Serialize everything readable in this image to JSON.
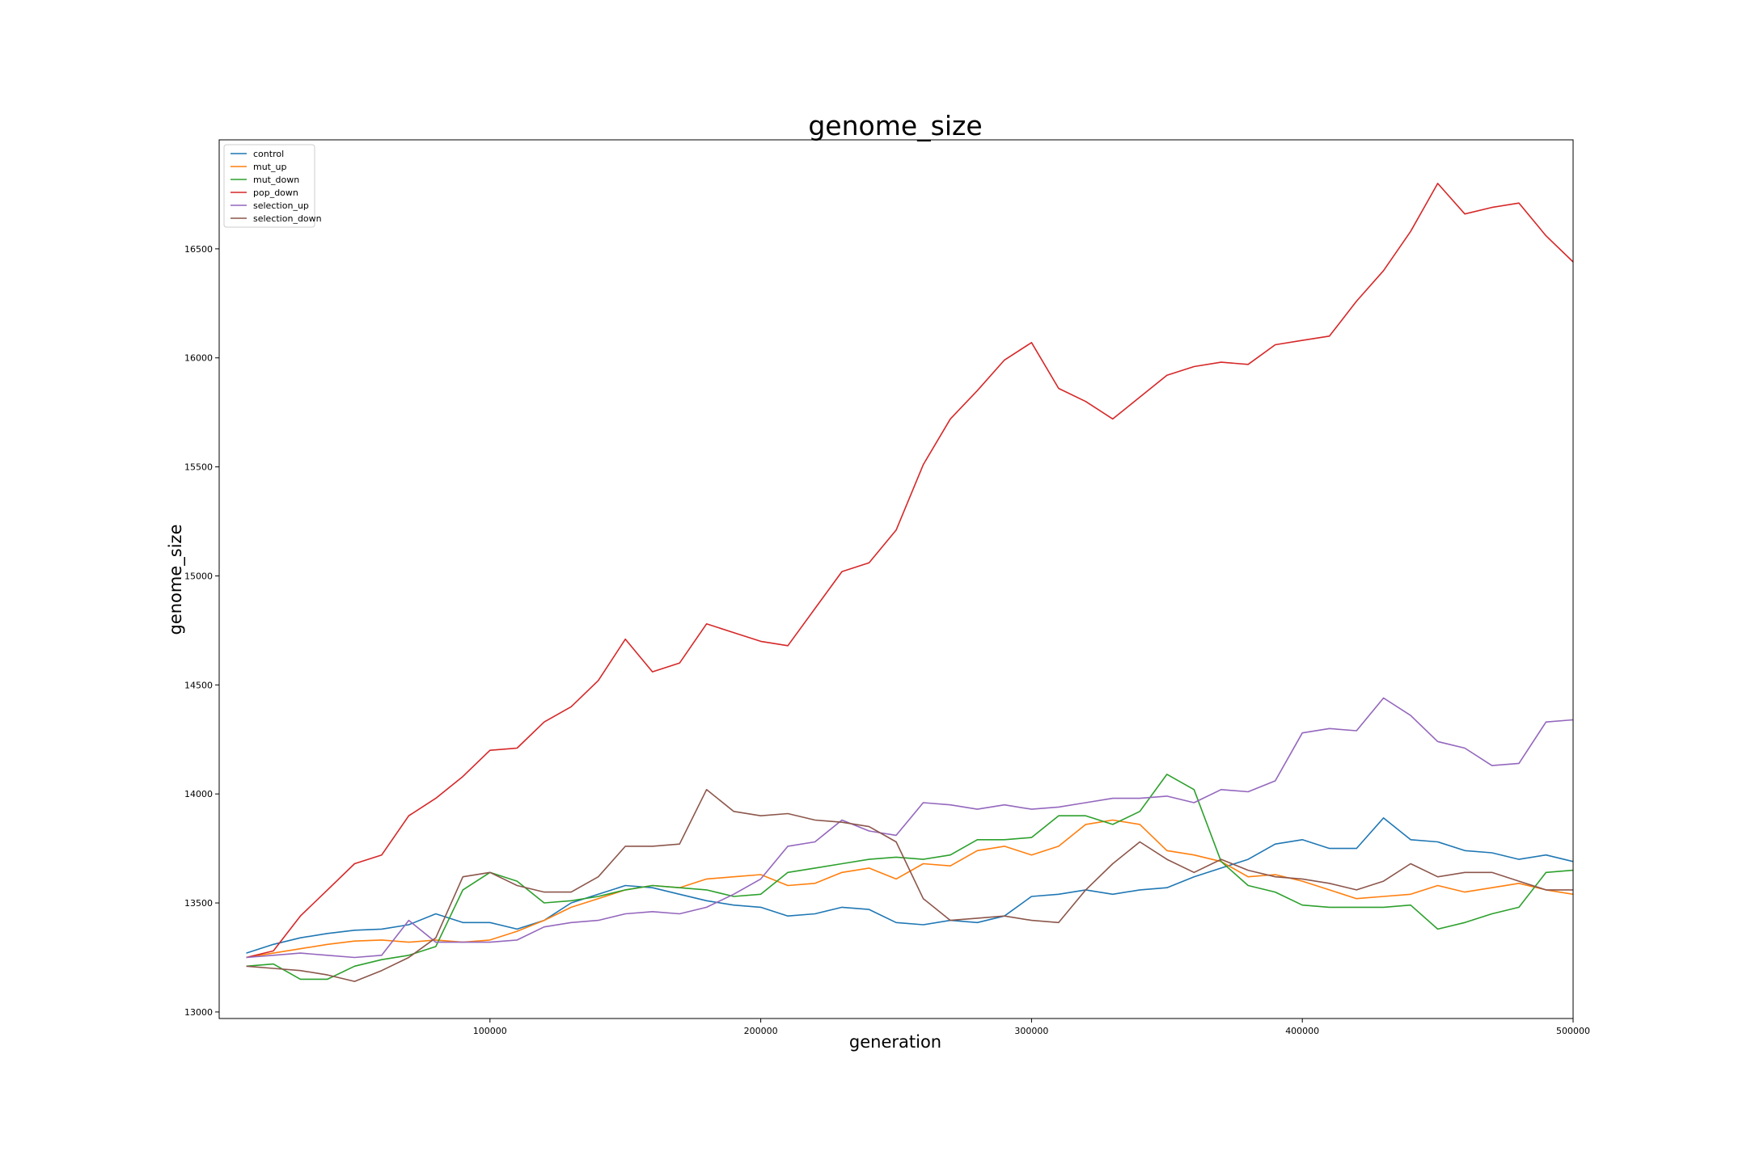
{
  "chart_data": {
    "type": "line",
    "title": "genome_size",
    "xlabel": "generation",
    "ylabel": "genome_size",
    "xlim": [
      0,
      500000
    ],
    "ylim": [
      12970,
      17000
    ],
    "xticks": [
      100000,
      200000,
      300000,
      400000,
      500000
    ],
    "xtick_labels": [
      "100000",
      "200000",
      "300000",
      "400000",
      "500000"
    ],
    "yticks": [
      13000,
      13500,
      14000,
      14500,
      15000,
      15500,
      16000,
      16500
    ],
    "ytick_labels": [
      "13000",
      "13500",
      "14000",
      "14500",
      "15000",
      "15500",
      "16000",
      "16500"
    ],
    "grid": false,
    "legend": "top-left",
    "x": [
      10000,
      20000,
      30000,
      40000,
      50000,
      60000,
      70000,
      80000,
      90000,
      100000,
      110000,
      120000,
      130000,
      140000,
      150000,
      160000,
      170000,
      180000,
      190000,
      200000,
      210000,
      220000,
      230000,
      240000,
      250000,
      260000,
      270000,
      280000,
      290000,
      300000,
      310000,
      320000,
      330000,
      340000,
      350000,
      360000,
      370000,
      380000,
      390000,
      400000,
      410000,
      420000,
      430000,
      440000,
      450000,
      460000,
      470000,
      480000,
      490000,
      500000
    ],
    "series": [
      {
        "name": "control",
        "color": "#1f77b4",
        "values": [
          13270,
          13310,
          13340,
          13360,
          13375,
          13380,
          13400,
          13450,
          13410,
          13410,
          13380,
          13420,
          13500,
          13540,
          13580,
          13570,
          13540,
          13510,
          13490,
          13480,
          13440,
          13450,
          13480,
          13470,
          13410,
          13400,
          13420,
          13410,
          13440,
          13530,
          13540,
          13560,
          13540,
          13560,
          13570,
          13620,
          13660,
          13700,
          13770,
          13790,
          13750,
          13750,
          13890,
          13790,
          13780,
          13740,
          13730,
          13700,
          13720,
          13690
        ]
      },
      {
        "name": "mut_up",
        "color": "#ff7f0e",
        "values": [
          13250,
          13270,
          13290,
          13310,
          13325,
          13330,
          13320,
          13330,
          13320,
          13330,
          13370,
          13420,
          13480,
          13520,
          13560,
          13580,
          13570,
          13610,
          13620,
          13630,
          13580,
          13590,
          13640,
          13660,
          13610,
          13680,
          13670,
          13740,
          13760,
          13720,
          13760,
          13860,
          13880,
          13860,
          13740,
          13720,
          13690,
          13620,
          13630,
          13600,
          13560,
          13520,
          13530,
          13540,
          13580,
          13550,
          13570,
          13590,
          13560,
          13540
        ]
      },
      {
        "name": "mut_down",
        "color": "#2ca02c",
        "values": [
          13210,
          13220,
          13150,
          13150,
          13210,
          13240,
          13260,
          13300,
          13560,
          13640,
          13600,
          13500,
          13510,
          13530,
          13560,
          13580,
          13570,
          13560,
          13530,
          13540,
          13640,
          13660,
          13680,
          13700,
          13710,
          13700,
          13720,
          13790,
          13790,
          13800,
          13900,
          13900,
          13860,
          13920,
          14090,
          14020,
          13690,
          13580,
          13550,
          13490,
          13480,
          13480,
          13480,
          13490,
          13380,
          13410,
          13450,
          13480,
          13640,
          13650
        ]
      },
      {
        "name": "pop_down",
        "color": "#d62728",
        "values": [
          13250,
          13280,
          13440,
          13560,
          13680,
          13720,
          13900,
          13980,
          14080,
          14200,
          14210,
          14330,
          14400,
          14520,
          14710,
          14560,
          14600,
          14780,
          14740,
          14700,
          14680,
          14850,
          15020,
          15060,
          15210,
          15510,
          15720,
          15850,
          15990,
          16070,
          15860,
          15800,
          15720,
          15820,
          15920,
          15960,
          15980,
          15970,
          16060,
          16080,
          16100,
          16260,
          16400,
          16580,
          16800,
          16660,
          16690,
          16710,
          16560,
          16440
        ]
      },
      {
        "name": "selection_up",
        "color": "#9467bd",
        "values": [
          13250,
          13260,
          13270,
          13260,
          13250,
          13260,
          13420,
          13320,
          13320,
          13320,
          13330,
          13390,
          13410,
          13420,
          13450,
          13460,
          13450,
          13480,
          13540,
          13610,
          13760,
          13780,
          13880,
          13830,
          13810,
          13960,
          13950,
          13930,
          13950,
          13930,
          13940,
          13960,
          13980,
          13980,
          13990,
          13960,
          14020,
          14010,
          14060,
          14280,
          14300,
          14290,
          14440,
          14360,
          14240,
          14210,
          14130,
          14140,
          14330,
          14340
        ]
      },
      {
        "name": "selection_down",
        "color": "#8c564b",
        "values": [
          13210,
          13200,
          13190,
          13170,
          13140,
          13190,
          13250,
          13340,
          13620,
          13640,
          13580,
          13550,
          13550,
          13620,
          13760,
          13760,
          13770,
          14020,
          13920,
          13900,
          13910,
          13880,
          13870,
          13850,
          13780,
          13520,
          13420,
          13430,
          13440,
          13420,
          13410,
          13560,
          13680,
          13780,
          13700,
          13640,
          13700,
          13650,
          13620,
          13610,
          13590,
          13560,
          13600,
          13680,
          13620,
          13640,
          13640,
          13600,
          13560,
          13560
        ]
      }
    ]
  }
}
